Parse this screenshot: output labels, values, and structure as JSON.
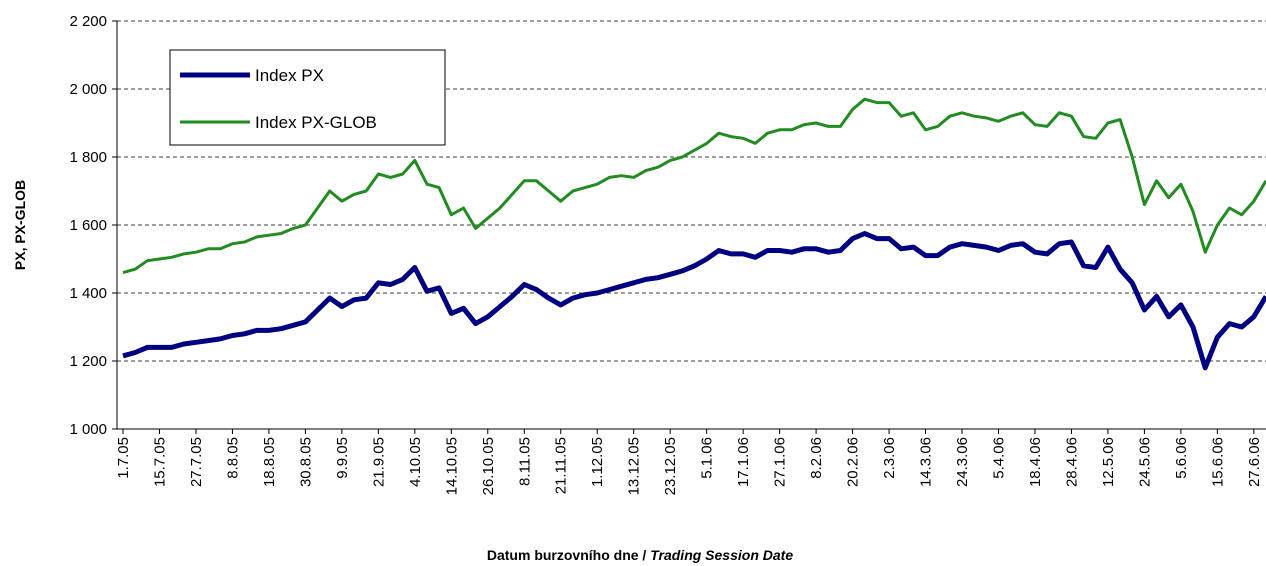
{
  "chart_data": {
    "type": "line",
    "ylabel": "PX, PX-GLOB",
    "xlabel": "Datum burzovního dne / ",
    "xlabel_en": "Trading Session Date",
    "categories": [
      "1.7.05",
      null,
      null,
      "15.7.05",
      null,
      null,
      "27.7.05",
      null,
      null,
      "8.8.05",
      null,
      null,
      "18.8.05",
      null,
      null,
      "30.8.05",
      null,
      null,
      "9.9.05",
      null,
      null,
      "21.9.05",
      null,
      null,
      "4.10.05",
      null,
      null,
      "14.10.05",
      null,
      null,
      "26.10.05",
      null,
      null,
      "8.11.05",
      null,
      null,
      "21.11.05",
      null,
      null,
      "1.12.05",
      null,
      null,
      "13.12.05",
      null,
      null,
      "23.12.05",
      null,
      null,
      "5.1.06",
      null,
      null,
      "17.1.06",
      null,
      null,
      "27.1.06",
      null,
      null,
      "8.2.06",
      null,
      null,
      "20.2.06",
      null,
      null,
      "2.3.06",
      null,
      null,
      "14.3.06",
      null,
      null,
      "24.3.06",
      null,
      null,
      "5.4.06",
      null,
      null,
      "18.4.06",
      null,
      null,
      "28.4.06",
      null,
      null,
      "12.5.06",
      null,
      null,
      "24.5.06",
      null,
      null,
      "5.6.06",
      null,
      null,
      "15.6.06",
      null,
      null,
      "27.6.06",
      null
    ],
    "series": [
      {
        "name": "Index PX",
        "color": "#000080",
        "width": 5,
        "values": [
          1215,
          1225,
          1240,
          1240,
          1240,
          1250,
          1255,
          1260,
          1265,
          1275,
          1280,
          1290,
          1290,
          1295,
          1305,
          1315,
          1350,
          1385,
          1360,
          1380,
          1385,
          1430,
          1425,
          1440,
          1475,
          1405,
          1415,
          1340,
          1355,
          1310,
          1330,
          1360,
          1390,
          1425,
          1410,
          1385,
          1365,
          1385,
          1395,
          1400,
          1410,
          1420,
          1430,
          1440,
          1445,
          1455,
          1465,
          1480,
          1500,
          1525,
          1515,
          1515,
          1505,
          1525,
          1525,
          1520,
          1530,
          1530,
          1520,
          1525,
          1560,
          1575,
          1560,
          1560,
          1530,
          1535,
          1510,
          1510,
          1535,
          1545,
          1540,
          1535,
          1525,
          1540,
          1545,
          1520,
          1515,
          1545,
          1550,
          1480,
          1475,
          1535,
          1470,
          1430,
          1350,
          1390,
          1330,
          1365,
          1300,
          1180,
          1270,
          1310,
          1300,
          1330,
          1390
        ]
      },
      {
        "name": "Index PX-GLOB",
        "color": "#228b22",
        "width": 3,
        "values": [
          1460,
          1470,
          1495,
          1500,
          1505,
          1515,
          1520,
          1530,
          1530,
          1545,
          1550,
          1565,
          1570,
          1575,
          1590,
          1600,
          1650,
          1700,
          1670,
          1690,
          1700,
          1750,
          1740,
          1750,
          1790,
          1720,
          1710,
          1630,
          1650,
          1590,
          1620,
          1650,
          1690,
          1730,
          1730,
          1700,
          1670,
          1700,
          1710,
          1720,
          1740,
          1745,
          1740,
          1760,
          1770,
          1790,
          1800,
          1820,
          1840,
          1870,
          1860,
          1855,
          1840,
          1870,
          1880,
          1880,
          1895,
          1900,
          1890,
          1890,
          1940,
          1970,
          1960,
          1960,
          1920,
          1930,
          1880,
          1890,
          1920,
          1930,
          1920,
          1915,
          1905,
          1920,
          1930,
          1895,
          1890,
          1930,
          1920,
          1860,
          1855,
          1900,
          1910,
          1800,
          1660,
          1730,
          1680,
          1720,
          1640,
          1520,
          1600,
          1650,
          1630,
          1670,
          1730
        ]
      }
    ],
    "ylim": [
      1000,
      2200
    ],
    "yticks": [
      {
        "value": 1000,
        "label": "1 000"
      },
      {
        "value": 1200,
        "label": "1 200"
      },
      {
        "value": 1400,
        "label": "1 400"
      },
      {
        "value": 1600,
        "label": "1 600"
      },
      {
        "value": 1800,
        "label": "1 800"
      },
      {
        "value": 2000,
        "label": "2 000"
      },
      {
        "value": 2200,
        "label": "2 200"
      }
    ],
    "grid": true,
    "legend": "upper left"
  }
}
